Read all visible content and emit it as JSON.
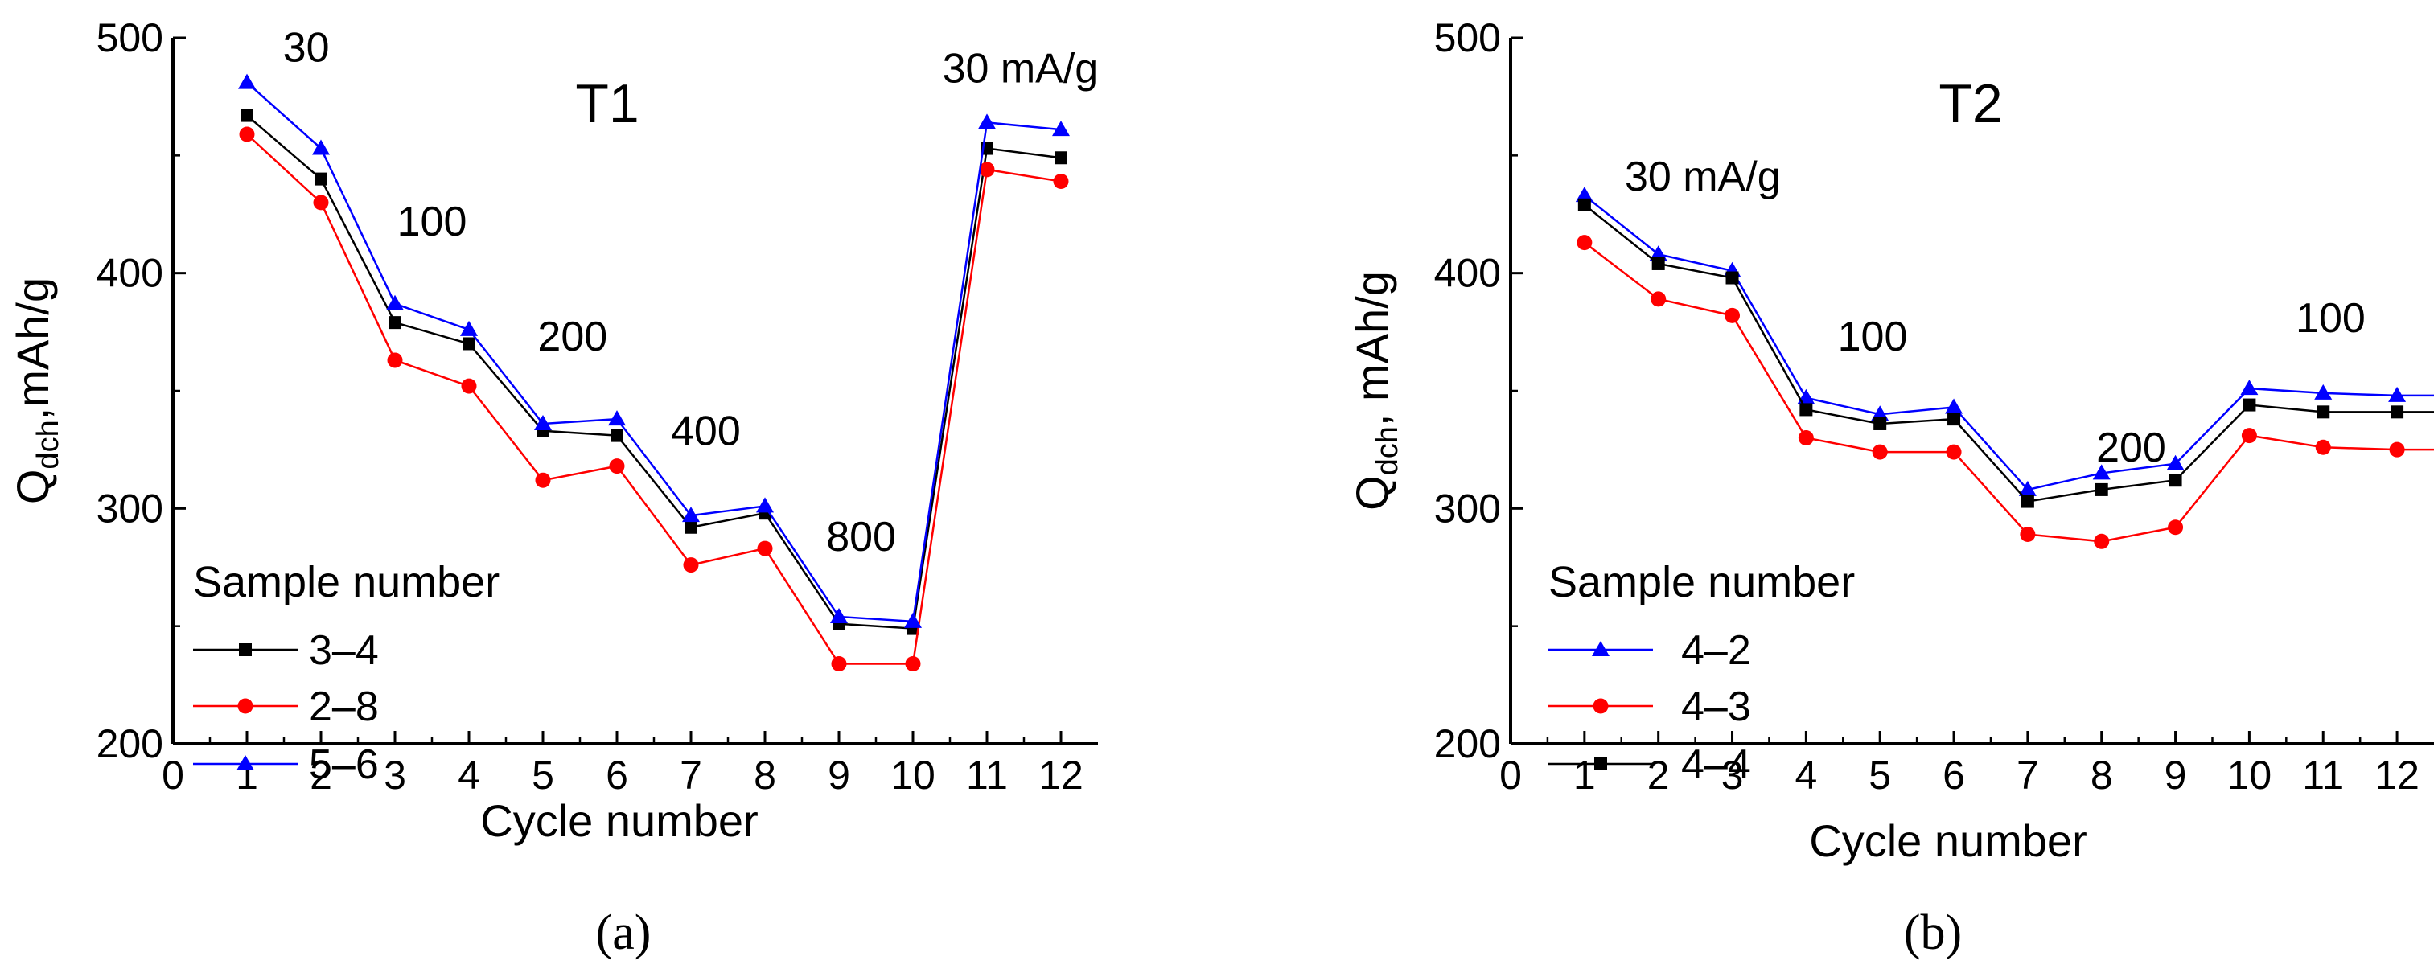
{
  "chart_data": [
    {
      "type": "line",
      "title": "T1",
      "xlabel": "Cycle number",
      "ylabel": "Q",
      "ylabel_sub": "dch",
      "ylabel_suffix": ",mAh/g",
      "xlim": [
        0,
        12.5
      ],
      "ylim": [
        200,
        500
      ],
      "xticks": [
        "0",
        "1",
        "2",
        "3",
        "4",
        "5",
        "6",
        "7",
        "8",
        "9",
        "10",
        "11",
        "12"
      ],
      "yticks": [
        "200",
        "300",
        "400",
        "500"
      ],
      "legend_title": "Sample number",
      "legend_placement": "lower-left",
      "series": [
        {
          "name": "3–4",
          "color": "#000000",
          "marker": "square",
          "x": [
            1,
            2,
            3,
            4,
            5,
            6,
            7,
            8,
            9,
            10,
            11,
            12
          ],
          "values": [
            467,
            440,
            379,
            370,
            333,
            331,
            292,
            298,
            251,
            249,
            453,
            449
          ]
        },
        {
          "name": "2–8",
          "color": "#ff0000",
          "marker": "circle",
          "x": [
            1,
            2,
            3,
            4,
            5,
            6,
            7,
            8,
            9,
            10,
            11,
            12
          ],
          "values": [
            459,
            430,
            363,
            352,
            312,
            318,
            276,
            283,
            234,
            234,
            444,
            439
          ]
        },
        {
          "name": "5–6",
          "color": "#0000ff",
          "marker": "triangle",
          "x": [
            1,
            2,
            3,
            4,
            5,
            6,
            7,
            8,
            9,
            10,
            11,
            12
          ],
          "values": [
            481,
            453,
            387,
            376,
            336,
            338,
            297,
            301,
            254,
            252,
            464,
            461
          ]
        }
      ],
      "annotations": [
        {
          "text": "30",
          "x": 1.8,
          "y": 490
        },
        {
          "text": "100",
          "x": 3.5,
          "y": 416
        },
        {
          "text": "200",
          "x": 5.4,
          "y": 367
        },
        {
          "text": "400",
          "x": 7.2,
          "y": 327
        },
        {
          "text": "800",
          "x": 9.3,
          "y": 282
        },
        {
          "text": "30 mA/g",
          "x": 11.45,
          "y": 481
        }
      ],
      "panel_label": "(a)"
    },
    {
      "type": "line",
      "title": "T2",
      "xlabel": "Cycle number",
      "ylabel": "Q",
      "ylabel_sub": "dch",
      "ylabel_suffix": ", mAh/g",
      "xlim": [
        0,
        12.5
      ],
      "ylim": [
        200,
        500
      ],
      "xticks": [
        "0",
        "1",
        "2",
        "3",
        "4",
        "5",
        "6",
        "7",
        "8",
        "9",
        "10",
        "11",
        "12"
      ],
      "yticks": [
        "200",
        "300",
        "400",
        "500"
      ],
      "legend_title": "Sample number",
      "legend_placement": "lower-left",
      "series": [
        {
          "name": "4–2",
          "color": "#0000ff",
          "marker": "triangle",
          "x": [
            1,
            2,
            3,
            4,
            5,
            6,
            7,
            8,
            9,
            10,
            11,
            12,
            12.5
          ],
          "values": [
            433,
            408,
            401,
            347,
            340,
            343,
            308,
            315,
            319,
            351,
            349,
            348,
            348
          ]
        },
        {
          "name": "4–3",
          "color": "#ff0000",
          "marker": "circle",
          "x": [
            1,
            2,
            3,
            4,
            5,
            6,
            7,
            8,
            9,
            10,
            11,
            12,
            12.5
          ],
          "values": [
            413,
            389,
            382,
            330,
            324,
            324,
            289,
            286,
            292,
            331,
            326,
            325,
            325
          ]
        },
        {
          "name": "4–4",
          "color": "#000000",
          "marker": "square",
          "x": [
            1,
            2,
            3,
            4,
            5,
            6,
            7,
            8,
            9,
            10,
            11,
            12,
            12.5
          ],
          "values": [
            429,
            404,
            398,
            342,
            336,
            338,
            303,
            308,
            312,
            344,
            341,
            341,
            341
          ]
        }
      ],
      "annotations": [
        {
          "text": "30 mA/g",
          "x": 2.6,
          "y": 435
        },
        {
          "text": "100",
          "x": 4.9,
          "y": 367
        },
        {
          "text": "200",
          "x": 8.4,
          "y": 320
        },
        {
          "text": "100",
          "x": 11.1,
          "y": 375
        }
      ],
      "panel_label": "(b)"
    }
  ]
}
